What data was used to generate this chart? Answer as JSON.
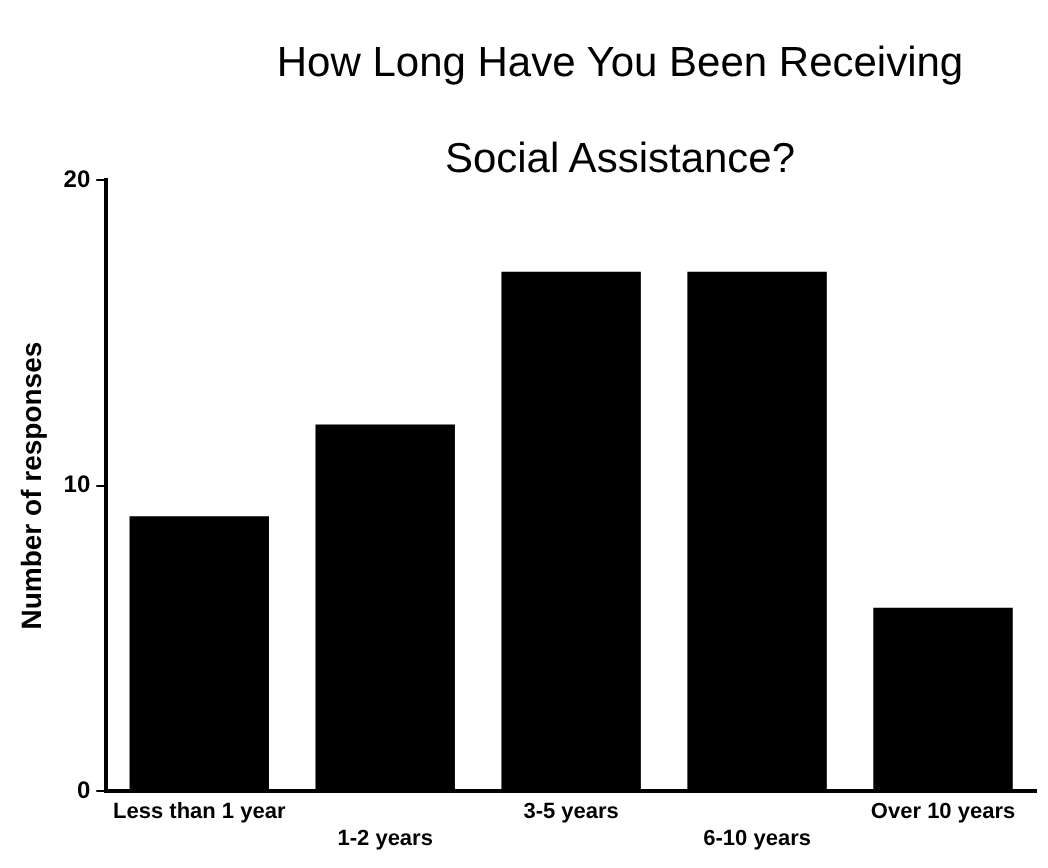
{
  "chart_data": {
    "type": "bar",
    "title": "How Long Have You Been Receiving Social Assistance?",
    "ylabel": "Number of responses",
    "categories": [
      "Less than 1 year",
      "1-2 years",
      "3-5 years",
      "6-10 years",
      "Over 10 years"
    ],
    "values": [
      9,
      12,
      17,
      17,
      6
    ],
    "color": "#000000",
    "ylim": [
      0,
      20
    ],
    "yticks": [
      0,
      10,
      20
    ],
    "grid": false,
    "legend": false
  }
}
